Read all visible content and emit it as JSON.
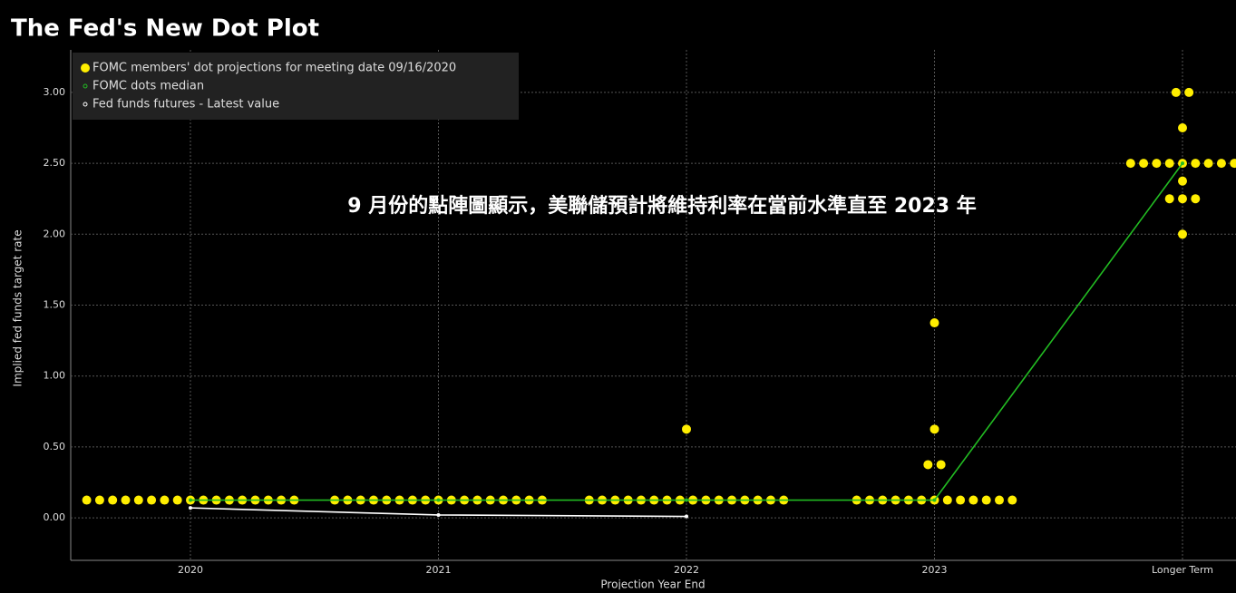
{
  "chart_data": {
    "type": "dotplot",
    "title": "The Fed's New Dot Plot",
    "annotation": "9 月份的點陣圖顯示，美聯儲預計將維持利率在當前水準直至 2023 年",
    "x_label": "Projection Year End",
    "y_label": "Implied fed funds target rate",
    "categories": [
      "2020",
      "2021",
      "2022",
      "2023",
      "Longer Term"
    ],
    "ylim": [
      -0.3,
      3.3
    ],
    "yticks": [
      {
        "value": 0,
        "label": "0.00"
      },
      {
        "value": 0.5,
        "label": "0.50"
      },
      {
        "value": 1,
        "label": "1.00"
      },
      {
        "value": 1.5,
        "label": "1.50"
      },
      {
        "value": 2,
        "label": "2.00"
      },
      {
        "value": 2.5,
        "label": "2.50"
      },
      {
        "value": 3,
        "label": "3.00"
      }
    ],
    "grid": true,
    "series": [
      {
        "name": "FOMC members' dot projections for meeting date 09/16/2020",
        "color": "#ffee00",
        "kind": "dots",
        "values": [
          [
            0.125,
            0.125,
            0.125,
            0.125,
            0.125,
            0.125,
            0.125,
            0.125,
            0.125,
            0.125,
            0.125,
            0.125,
            0.125,
            0.125,
            0.125,
            0.125,
            0.125
          ],
          [
            0.125,
            0.125,
            0.125,
            0.125,
            0.125,
            0.125,
            0.125,
            0.125,
            0.125,
            0.125,
            0.125,
            0.125,
            0.125,
            0.125,
            0.125,
            0.125,
            0.125
          ],
          [
            0.125,
            0.125,
            0.125,
            0.125,
            0.125,
            0.125,
            0.125,
            0.125,
            0.125,
            0.125,
            0.125,
            0.125,
            0.125,
            0.125,
            0.125,
            0.125,
            0.625
          ],
          [
            0.125,
            0.125,
            0.125,
            0.125,
            0.125,
            0.125,
            0.125,
            0.125,
            0.125,
            0.125,
            0.125,
            0.125,
            0.125,
            0.375,
            0.375,
            0.625,
            1.375
          ],
          [
            2,
            2.25,
            2.25,
            2.25,
            2.375,
            2.5,
            2.5,
            2.5,
            2.5,
            2.5,
            2.5,
            2.5,
            2.5,
            2.5,
            2.75,
            3,
            3
          ]
        ]
      },
      {
        "name": "FOMC dots median",
        "color": "#22bb22",
        "kind": "line",
        "values": [
          0.125,
          0.125,
          0.125,
          0.125,
          2.5
        ]
      },
      {
        "name": "Fed funds futures - Latest value",
        "color": "#ffffff",
        "kind": "line",
        "values": [
          0.07,
          0.02,
          0.01,
          null,
          null
        ]
      }
    ]
  }
}
